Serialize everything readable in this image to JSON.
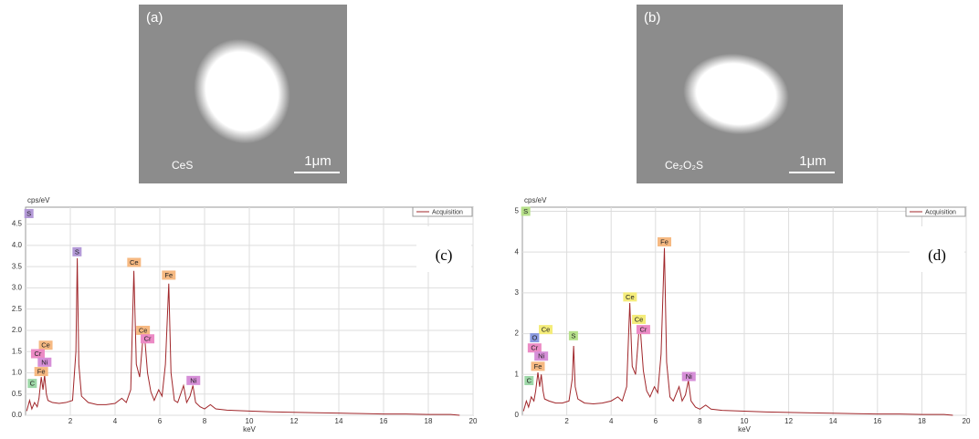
{
  "panels": [
    {
      "label": "(a)",
      "caption": "CeS",
      "scale_bar": "1μm"
    },
    {
      "label": "(b)",
      "caption": "Ce₂O₂S",
      "scale_bar": "1μm"
    }
  ],
  "chart_data": [
    {
      "type": "line",
      "panel_label": "(c)",
      "ylabel": "cps/eV",
      "xlabel": "keV",
      "xlim": [
        0,
        20
      ],
      "ylim": [
        0,
        4.9
      ],
      "xticks": [
        2,
        4,
        6,
        8,
        10,
        12,
        14,
        16,
        18,
        20
      ],
      "yticks": [
        {
          "value": 0,
          "label": "0.0"
        },
        {
          "value": 0.5,
          "label": "0.5"
        },
        {
          "value": 1,
          "label": "1.0"
        },
        {
          "value": 1.5,
          "label": "1.5"
        },
        {
          "value": 2,
          "label": "2.0"
        },
        {
          "value": 2.5,
          "label": "2.5"
        },
        {
          "value": 3,
          "label": "3.0"
        },
        {
          "value": 3.5,
          "label": "3.5"
        },
        {
          "value": 4,
          "label": "4.0"
        },
        {
          "value": 4.5,
          "label": "4.5"
        }
      ],
      "grid": true,
      "legend": "upper right",
      "series": [
        {
          "name": "Acquisition",
          "color": "#a0262a",
          "x": [
            0.05,
            0.18,
            0.28,
            0.4,
            0.52,
            0.6,
            0.7,
            0.78,
            0.85,
            0.93,
            1.0,
            1.2,
            1.5,
            1.8,
            2.1,
            2.25,
            2.31,
            2.38,
            2.5,
            2.8,
            3.2,
            3.6,
            4.0,
            4.3,
            4.5,
            4.7,
            4.84,
            4.95,
            5.1,
            5.25,
            5.33,
            5.45,
            5.6,
            5.75,
            5.95,
            6.1,
            6.25,
            6.4,
            6.5,
            6.65,
            6.8,
            7.06,
            7.2,
            7.35,
            7.48,
            7.6,
            7.8,
            8.0,
            8.26,
            8.5,
            9,
            10,
            11,
            12,
            13,
            14,
            15,
            16,
            17,
            18,
            19,
            19.4
          ],
          "values": [
            0.1,
            0.35,
            0.15,
            0.3,
            0.2,
            0.4,
            0.9,
            0.6,
            0.95,
            0.5,
            0.35,
            0.3,
            0.28,
            0.3,
            0.35,
            1.5,
            3.7,
            1.2,
            0.45,
            0.3,
            0.25,
            0.25,
            0.28,
            0.4,
            0.3,
            0.6,
            3.4,
            1.2,
            0.9,
            1.85,
            1.8,
            1.0,
            0.55,
            0.35,
            0.6,
            0.45,
            1.2,
            3.1,
            1.0,
            0.35,
            0.3,
            0.7,
            0.3,
            0.45,
            0.7,
            0.3,
            0.2,
            0.15,
            0.25,
            0.15,
            0.12,
            0.1,
            0.08,
            0.07,
            0.06,
            0.05,
            0.04,
            0.03,
            0.03,
            0.02,
            0.02,
            0
          ]
        }
      ],
      "annotations": [
        {
          "text": "S",
          "x": 0.15,
          "y": 4.75,
          "color": "#b49ad8"
        },
        {
          "text": "S",
          "x": 2.3,
          "y": 3.85,
          "color": "#b49ad8"
        },
        {
          "text": "Ce",
          "x": 4.85,
          "y": 3.6,
          "color": "#f6b982"
        },
        {
          "text": "Fe",
          "x": 6.4,
          "y": 3.3,
          "color": "#f6b982"
        },
        {
          "text": "Ce",
          "x": 5.25,
          "y": 2.0,
          "color": "#f6b982"
        },
        {
          "text": "Cr",
          "x": 5.45,
          "y": 1.8,
          "color": "#ec8bc5"
        },
        {
          "text": "Ce",
          "x": 0.9,
          "y": 1.65,
          "color": "#f6b982"
        },
        {
          "text": "Cr",
          "x": 0.55,
          "y": 1.45,
          "color": "#ec8bc5"
        },
        {
          "text": "Ni",
          "x": 0.85,
          "y": 1.25,
          "color": "#d68fd8"
        },
        {
          "text": "Fe",
          "x": 0.7,
          "y": 1.03,
          "color": "#f6b982"
        },
        {
          "text": "C",
          "x": 0.3,
          "y": 0.75,
          "color": "#9ed8a8"
        },
        {
          "text": "Ni",
          "x": 7.5,
          "y": 0.82,
          "color": "#d68fd8"
        }
      ]
    },
    {
      "type": "line",
      "panel_label": "(d)",
      "ylabel": "cps/eV",
      "xlabel": "keV",
      "xlim": [
        0,
        20
      ],
      "ylim": [
        0,
        5.1
      ],
      "xticks": [
        2,
        4,
        6,
        8,
        10,
        12,
        14,
        16,
        18,
        20
      ],
      "yticks": [
        0,
        1,
        2,
        3,
        4,
        5
      ],
      "grid": true,
      "legend": "upper right",
      "series": [
        {
          "name": "Acquisition",
          "color": "#a0262a",
          "x": [
            0.05,
            0.18,
            0.28,
            0.4,
            0.52,
            0.6,
            0.7,
            0.78,
            0.85,
            0.93,
            1.0,
            1.2,
            1.5,
            1.8,
            2.1,
            2.25,
            2.31,
            2.38,
            2.5,
            2.8,
            3.2,
            3.6,
            4.0,
            4.3,
            4.5,
            4.7,
            4.84,
            4.95,
            5.1,
            5.25,
            5.33,
            5.45,
            5.6,
            5.75,
            5.95,
            6.1,
            6.25,
            6.4,
            6.5,
            6.65,
            6.8,
            7.06,
            7.2,
            7.35,
            7.48,
            7.6,
            7.8,
            8.0,
            8.26,
            8.5,
            9,
            10,
            11,
            12,
            13,
            14,
            15,
            16,
            17,
            18,
            19,
            19.4
          ],
          "values": [
            0.1,
            0.35,
            0.2,
            0.45,
            0.35,
            0.6,
            1.05,
            0.7,
            1.0,
            0.6,
            0.4,
            0.35,
            0.3,
            0.3,
            0.35,
            0.9,
            1.7,
            0.7,
            0.4,
            0.3,
            0.28,
            0.3,
            0.35,
            0.45,
            0.35,
            0.7,
            2.75,
            1.2,
            1.0,
            2.05,
            2.0,
            1.1,
            0.6,
            0.45,
            0.7,
            0.55,
            1.5,
            4.1,
            1.3,
            0.45,
            0.35,
            0.7,
            0.35,
            0.5,
            0.85,
            0.35,
            0.2,
            0.15,
            0.25,
            0.15,
            0.12,
            0.1,
            0.08,
            0.07,
            0.06,
            0.05,
            0.04,
            0.03,
            0.03,
            0.02,
            0.02,
            0
          ]
        }
      ],
      "annotations": [
        {
          "text": "S",
          "x": 0.15,
          "y": 5.0,
          "color": "#b6e08a"
        },
        {
          "text": "Fe",
          "x": 6.4,
          "y": 4.25,
          "color": "#f6b982"
        },
        {
          "text": "Ce",
          "x": 4.85,
          "y": 2.9,
          "color": "#f4ec7a"
        },
        {
          "text": "Ce",
          "x": 5.25,
          "y": 2.35,
          "color": "#f4ec7a"
        },
        {
          "text": "Cr",
          "x": 5.45,
          "y": 2.1,
          "color": "#ec8bc5"
        },
        {
          "text": "Ce",
          "x": 1.05,
          "y": 2.1,
          "color": "#f4ec7a"
        },
        {
          "text": "S",
          "x": 2.3,
          "y": 1.95,
          "color": "#b6e08a"
        },
        {
          "text": "O",
          "x": 0.55,
          "y": 1.9,
          "color": "#8a9ae0"
        },
        {
          "text": "Cr",
          "x": 0.55,
          "y": 1.65,
          "color": "#ec8bc5"
        },
        {
          "text": "Ni",
          "x": 0.85,
          "y": 1.45,
          "color": "#d68fd8"
        },
        {
          "text": "Fe",
          "x": 0.7,
          "y": 1.2,
          "color": "#f6b982"
        },
        {
          "text": "C",
          "x": 0.3,
          "y": 0.85,
          "color": "#9ed8a8"
        },
        {
          "text": "Ni",
          "x": 7.5,
          "y": 0.95,
          "color": "#d68fd8"
        }
      ]
    }
  ]
}
